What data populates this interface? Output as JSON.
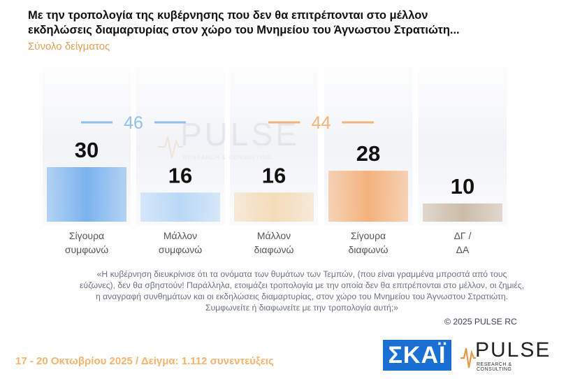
{
  "title": "Με την τροπολογία της κυβέρνησης που δεν θα επιτρέπονται στο μέλλον εκδηλώσεις διαμαρτυρίας στον χώρο του Μνημείου του Άγνωστου Στρατιώτη...",
  "subtitle": "Σύνολο δείγματος",
  "chart_data": {
    "type": "bar",
    "categories": [
      "Σίγουρα συμφωνώ",
      "Μάλλον συμφωνώ",
      "Μάλλον διαφωνώ",
      "Σίγουρα διαφωνώ",
      "ΔΓ / ΔΑ"
    ],
    "category_lines": [
      [
        "Σίγουρα",
        "συμφωνώ"
      ],
      [
        "Μάλλον",
        "συμφωνώ"
      ],
      [
        "Μάλλον",
        "διαφωνώ"
      ],
      [
        "Σίγουρα",
        "διαφωνώ"
      ],
      [
        "ΔΓ /",
        "ΔΑ"
      ]
    ],
    "values": [
      30,
      16,
      16,
      28,
      10
    ],
    "colors": [
      "#7bb3ee",
      "#b9d8f6",
      "#f3dcb9",
      "#f4b27c",
      "#cbbca8"
    ],
    "groups": [
      {
        "value": "46",
        "color": "#8fc0ec",
        "span": [
          0,
          1
        ]
      },
      {
        "value": "44",
        "color": "#f2b578",
        "span": [
          2,
          3
        ]
      }
    ],
    "ylim": [
      0,
      60
    ]
  },
  "watermark": {
    "word": "PULSE",
    "sub": "RESEARCH & CONSULTING"
  },
  "note": "«Η κυβέρνηση διευκρίνισε ότι τα ονόματα των θυμάτων των Τεμπών, (που είναι γραμμένα μπροστά από τους εύζωνες), δεν θα σβηστούν! Παράλληλα, ετοιμάζει τροπολογία με την οποία δεν θα επιτρέπονται στο μέλλον, οι ζημιές, η αναγραφή συνθημάτων και οι εκδηλώσεις διαμαρτυρίας, στον χώρο του Μνημείου του Άγνωστου Στρατιώτη. Συμφωνείτε ή διαφωνείτε με την τροπολογία αυτή;»",
  "copyright": "©  2025  PULSE RC",
  "footer": "17 - 20 Οκτωβρίου 2025  /  Δείγμα:  1.112 συνεντεύξεις",
  "logos": {
    "skai": "ΣΚΑΪ",
    "pulse": "PULSE",
    "pulse_sub": "RESEARCH & CONSULTING",
    "accent": "#1a6fd3"
  }
}
